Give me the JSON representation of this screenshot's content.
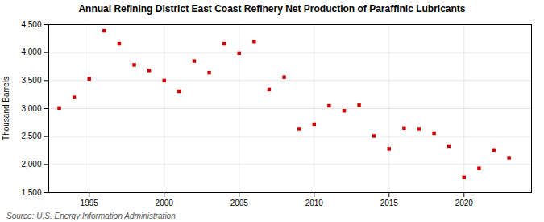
{
  "chart_data": {
    "type": "scatter",
    "title": "Annual Refining District East Coast Refinery Net Production of Paraffinic Lubricants",
    "ylabel": "Thousand Barrels",
    "source": "Source: U.S. Energy Information Administration",
    "x": [
      1993,
      1994,
      1995,
      1996,
      1997,
      1998,
      1999,
      2000,
      2001,
      2002,
      2003,
      2004,
      2005,
      2006,
      2007,
      2008,
      2009,
      2010,
      2011,
      2012,
      2013,
      2014,
      2015,
      2016,
      2017,
      2018,
      2019,
      2020,
      2021,
      2022,
      2023
    ],
    "values": [
      3010,
      3200,
      3530,
      4390,
      4160,
      3780,
      3680,
      3500,
      3310,
      3850,
      3640,
      4160,
      3990,
      4200,
      3340,
      3560,
      2640,
      2720,
      3050,
      2960,
      3060,
      2510,
      2280,
      2650,
      2640,
      2560,
      2330,
      1770,
      1930,
      2260,
      2120
    ],
    "color": "#cc0000",
    "marker": "square",
    "xlim": [
      1992.3,
      2024.5
    ],
    "xticks": [
      1995,
      2000,
      2005,
      2010,
      2015,
      2020
    ],
    "ylim": [
      1500,
      4500
    ],
    "yticks": [
      {
        "value": 1500,
        "label": "1,500"
      },
      {
        "value": 2000,
        "label": "2,000"
      },
      {
        "value": 2500,
        "label": "2,500"
      },
      {
        "value": 3000,
        "label": "3,000"
      },
      {
        "value": 3500,
        "label": "3,500"
      },
      {
        "value": 4000,
        "label": "4,000"
      },
      {
        "value": 4500,
        "label": "4,500"
      }
    ],
    "grid": true
  }
}
